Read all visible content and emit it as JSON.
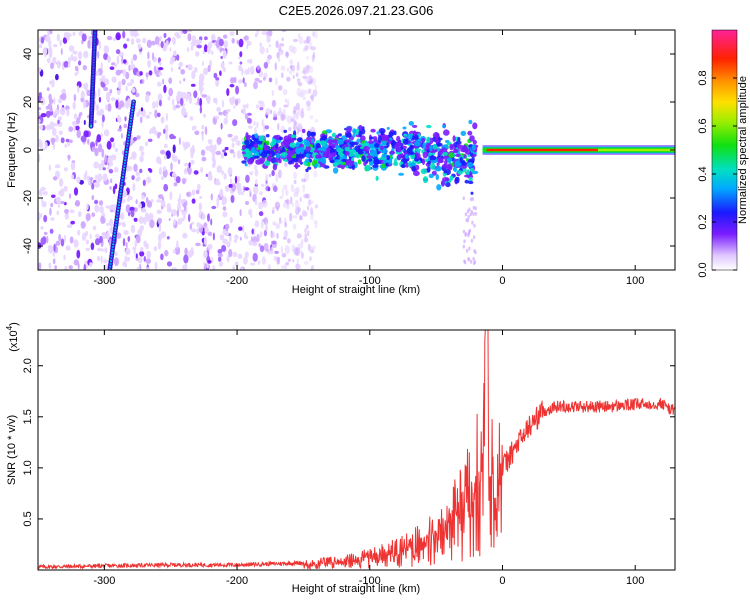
{
  "title": "C2E5.2026.097.21.23.G06",
  "chart_data": [
    {
      "type": "heatmap",
      "title": "C2E5.2026.097.21.23.G06",
      "xlabel": "Height of straight line (km)",
      "ylabel": "Frequency (Hz)",
      "xlim": [
        -350,
        130
      ],
      "ylim": [
        -50,
        50
      ],
      "x_ticks": [
        -300,
        -200,
        -100,
        0,
        100
      ],
      "y_ticks": [
        -40,
        -20,
        0,
        20,
        40
      ],
      "colorbar": {
        "label": "Normalized spectral amplitude",
        "range": [
          0,
          1
        ],
        "ticks": [
          0.0,
          0.2,
          0.4,
          0.6,
          0.8
        ],
        "tick_labels": [
          "0.0",
          "0.2",
          "0.4",
          "0.6",
          "0.8"
        ]
      },
      "features": {
        "noise_region_x": [
          -350,
          -150
        ],
        "steep_lines": [
          {
            "x_start": -307,
            "f_start": 50,
            "x_end": -310,
            "f_end": 10
          },
          {
            "x_start": -278,
            "f_start": 20,
            "x_end": -296,
            "f_end": -50
          }
        ],
        "direct_band": {
          "x_from": -195,
          "x_to": -20,
          "f_center": 0,
          "spread": 10
        },
        "carrier_line": {
          "x_from": -15,
          "x_to": 130,
          "f_center": 0
        }
      }
    },
    {
      "type": "line",
      "xlabel": "Height of straight line (km)",
      "ylabel": "SNR (10 * v/v)",
      "y_scale_label": "(x10",
      "y_scale_exp": "4",
      "xlim": [
        -350,
        130
      ],
      "ylim": [
        0,
        2.35
      ],
      "x_ticks": [
        -300,
        -200,
        -100,
        0,
        100
      ],
      "y_ticks": [
        0.5,
        1.0,
        1.5,
        2.0
      ],
      "y_tick_labels": [
        "0.5",
        "1.0",
        "1.5",
        "2.0"
      ],
      "series": [
        {
          "color": "#ee3333",
          "x": [
            -350,
            -300,
            -250,
            -200,
            -150,
            -120,
            -100,
            -80,
            -60,
            -50,
            -40,
            -30,
            -20,
            -15,
            -12,
            -10,
            -5,
            0,
            10,
            20,
            30,
            40,
            60,
            80,
            100,
            120,
            130
          ],
          "y": [
            0.03,
            0.04,
            0.05,
            0.05,
            0.07,
            0.1,
            0.15,
            0.22,
            0.32,
            0.42,
            0.55,
            0.75,
            1.0,
            1.4,
            2.3,
            1.2,
            1.05,
            1.0,
            1.2,
            1.4,
            1.55,
            1.6,
            1.6,
            1.6,
            1.62,
            1.63,
            1.55
          ]
        }
      ]
    }
  ]
}
